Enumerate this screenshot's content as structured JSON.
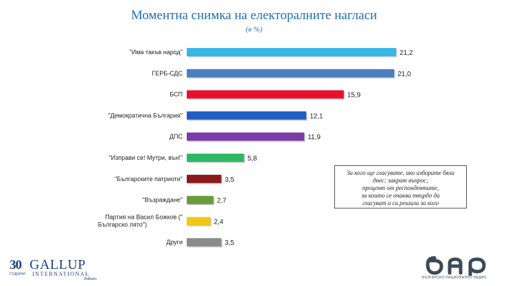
{
  "title": "Моментна снимка на електоралните нагласи",
  "subtitle": "(в %)",
  "chart_data": {
    "type": "bar",
    "orientation": "horizontal",
    "title": "Моментна снимка на електоралните нагласи",
    "subtitle": "(в %)",
    "categories": [
      "\"Има такъв народ\"",
      "ГЕРБ-СДС",
      "БСП",
      "\"Демократична България\"",
      "ДПС",
      "\"Изправи се! Мутри, вън!\"",
      "\"Българските патриоти\"",
      "\"Възраждане\"",
      "Партия на Васил Божков (\"Българско лято\")",
      "Други"
    ],
    "values": [
      21.2,
      21.0,
      15.9,
      12.1,
      11.9,
      5.8,
      3.5,
      2.7,
      2.4,
      3.5
    ],
    "value_labels": [
      "21,2",
      "21,0",
      "15,9",
      "12,1",
      "11,9",
      "5,8",
      "3,5",
      "2,7",
      "2,4",
      "3,5"
    ],
    "colors": [
      "#35b9e9",
      "#4a7fc0",
      "#e8102b",
      "#1f5fc4",
      "#7b3ca8",
      "#2fb864",
      "#8b1a1a",
      "#6a9a3a",
      "#f2c814",
      "#8c8c8c"
    ],
    "xlim": [
      0,
      21.2
    ],
    "grid": false,
    "legend": "none"
  },
  "note": {
    "lines": [
      "За кого ще гласувате, ако изборите бяха",
      "днес; закрит въпрос;",
      "процент от респондентите,",
      "за които се очаква твърдо да",
      "гласуват и са решили за кого"
    ]
  },
  "footer": {
    "gallup": {
      "number": "30",
      "years": "ГОДИНИ",
      "name": "GALLUP",
      "international": "INTERNATIONAL",
      "region": "Balkans"
    },
    "bnr": {
      "logo_text": "бнр",
      "caption": "БЪЛГАРСКО НАЦИОНАЛНО РАДИО"
    }
  }
}
